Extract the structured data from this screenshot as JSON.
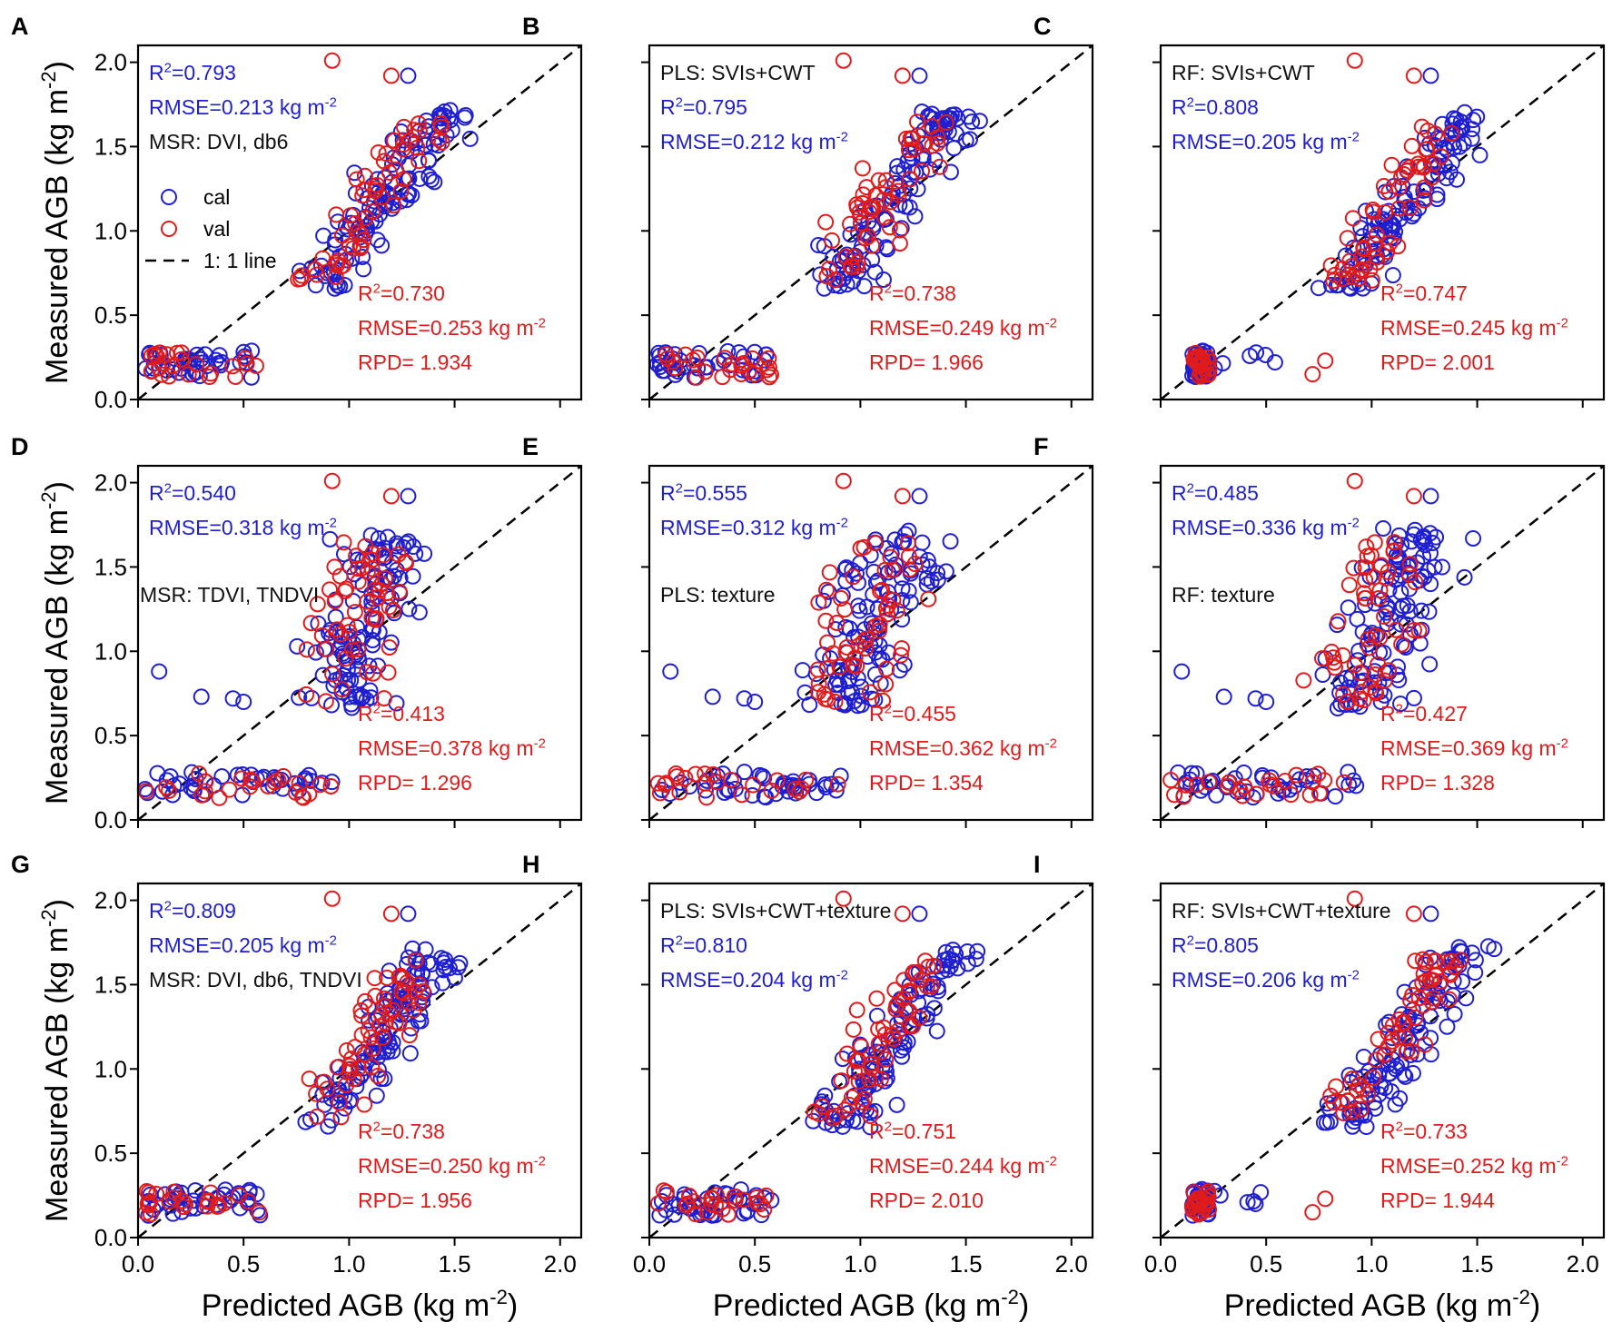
{
  "colors": {
    "cal": "#1f1fd1",
    "val": "#e01b1b",
    "axis": "#000000",
    "annotation": "#111111"
  },
  "axes": {
    "xlabel_main": "Predicted AGB (kg m",
    "xlabel_sup": "-2",
    "xlabel_close": ")",
    "ylabel_main": "Measured AGB (kg m",
    "ylabel_sup": "-2",
    "ylabel_close": ")",
    "xlim": [
      0,
      2.1
    ],
    "ylim": [
      0,
      2.1
    ],
    "xticks": [
      0.0,
      0.5,
      1.0,
      1.5,
      2.0
    ],
    "yticks": [
      0.0,
      0.5,
      1.0,
      1.5,
      2.0
    ],
    "xtick_labels": [
      "0.0",
      "0.5",
      "1.0",
      "1.5",
      "2.0"
    ],
    "ytick_labels": [
      "0.0",
      "0.5",
      "1.0",
      "1.5",
      "2.0"
    ]
  },
  "legend": {
    "cal": "cal",
    "val": "val",
    "line": "1: 1 line"
  },
  "chart_data": [
    {
      "panel": "A",
      "type": "scatter",
      "method": "MSR: DVI, db6",
      "cal": {
        "r2": "0.793",
        "rmse": "0.213"
      },
      "val": {
        "r2": "0.730",
        "rmse": "0.253",
        "rpd": "1.934"
      },
      "legend": true
    },
    {
      "panel": "B",
      "type": "scatter",
      "method": "PLS: SVIs+CWT",
      "cal": {
        "r2": "0.795",
        "rmse": "0.212"
      },
      "val": {
        "r2": "0.738",
        "rmse": "0.249",
        "rpd": "1.966"
      }
    },
    {
      "panel": "C",
      "type": "scatter",
      "method": "RF: SVIs+CWT",
      "cal": {
        "r2": "0.808",
        "rmse": "0.205"
      },
      "val": {
        "r2": "0.747",
        "rmse": "0.245",
        "rpd": "2.001"
      }
    },
    {
      "panel": "D",
      "type": "scatter",
      "method": "MSR: TDVI, TNDVI",
      "cal": {
        "r2": "0.540",
        "rmse": "0.318"
      },
      "val": {
        "r2": "0.413",
        "rmse": "0.378",
        "rpd": "1.296"
      }
    },
    {
      "panel": "E",
      "type": "scatter",
      "method": "PLS: texture",
      "cal": {
        "r2": "0.555",
        "rmse": "0.312"
      },
      "val": {
        "r2": "0.455",
        "rmse": "0.362",
        "rpd": "1.354"
      }
    },
    {
      "panel": "F",
      "type": "scatter",
      "method": "RF: texture",
      "cal": {
        "r2": "0.485",
        "rmse": "0.336"
      },
      "val": {
        "r2": "0.427",
        "rmse": "0.369",
        "rpd": "1.328"
      }
    },
    {
      "panel": "G",
      "type": "scatter",
      "method": "MSR: DVI, db6, TNDVI",
      "cal": {
        "r2": "0.809",
        "rmse": "0.205"
      },
      "val": {
        "r2": "0.738",
        "rmse": "0.250",
        "rpd": "1.956"
      }
    },
    {
      "panel": "H",
      "type": "scatter",
      "method": "PLS: SVIs+CWT+texture",
      "cal": {
        "r2": "0.810",
        "rmse": "0.204"
      },
      "val": {
        "r2": "0.751",
        "rmse": "0.244",
        "rpd": "2.010"
      }
    },
    {
      "panel": "I",
      "type": "scatter",
      "method": "RF: SVIs+CWT+texture",
      "cal": {
        "r2": "0.805",
        "rmse": "0.206"
      },
      "val": {
        "r2": "0.733",
        "rmse": "0.252",
        "rpd": "1.944"
      }
    }
  ]
}
